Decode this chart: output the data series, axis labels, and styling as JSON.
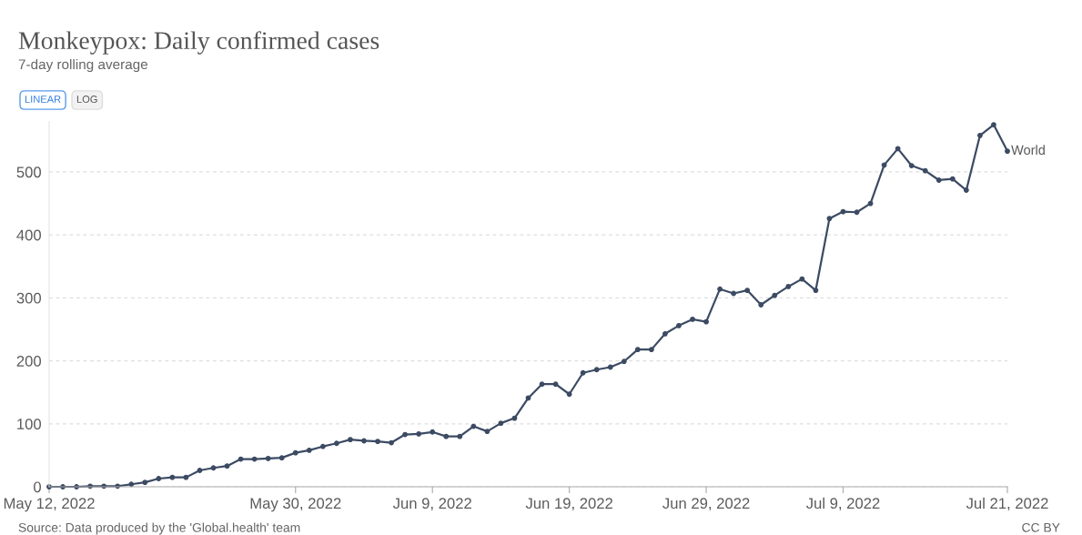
{
  "chart_data": {
    "type": "line",
    "title": "Monkeypox: Daily confirmed cases",
    "subtitle": "7-day rolling average",
    "annotations": [
      "LINEAR",
      "LOG",
      "Source: Data produced by the 'Global.health' team",
      "CC BY"
    ],
    "x": [
      "2022-05-12",
      "2022-05-13",
      "2022-05-14",
      "2022-05-15",
      "2022-05-16",
      "2022-05-17",
      "2022-05-18",
      "2022-05-19",
      "2022-05-20",
      "2022-05-21",
      "2022-05-22",
      "2022-05-23",
      "2022-05-24",
      "2022-05-25",
      "2022-05-26",
      "2022-05-27",
      "2022-05-28",
      "2022-05-29",
      "2022-05-30",
      "2022-05-31",
      "2022-06-01",
      "2022-06-02",
      "2022-06-03",
      "2022-06-04",
      "2022-06-05",
      "2022-06-06",
      "2022-06-07",
      "2022-06-08",
      "2022-06-09",
      "2022-06-10",
      "2022-06-11",
      "2022-06-12",
      "2022-06-13",
      "2022-06-14",
      "2022-06-15",
      "2022-06-16",
      "2022-06-17",
      "2022-06-18",
      "2022-06-19",
      "2022-06-20",
      "2022-06-21",
      "2022-06-22",
      "2022-06-23",
      "2022-06-24",
      "2022-06-25",
      "2022-06-26",
      "2022-06-27",
      "2022-06-28",
      "2022-06-29",
      "2022-06-30",
      "2022-07-01",
      "2022-07-02",
      "2022-07-03",
      "2022-07-04",
      "2022-07-05",
      "2022-07-06",
      "2022-07-07",
      "2022-07-08",
      "2022-07-09",
      "2022-07-10",
      "2022-07-11",
      "2022-07-12",
      "2022-07-13",
      "2022-07-14",
      "2022-07-15",
      "2022-07-16",
      "2022-07-17",
      "2022-07-18",
      "2022-07-19",
      "2022-07-20",
      "2022-07-21"
    ],
    "series": [
      {
        "name": "World",
        "color": "#3c4b63",
        "values": [
          0,
          0,
          0,
          1,
          1,
          1,
          4,
          7,
          13,
          15,
          15,
          26,
          30,
          33,
          44,
          44,
          45,
          46,
          54,
          58,
          64,
          69,
          75,
          73,
          72,
          70,
          83,
          84,
          87,
          80,
          80,
          96,
          88,
          101,
          109,
          141,
          163,
          163,
          147,
          181,
          186,
          190,
          199,
          218,
          218,
          243,
          256,
          266,
          262,
          314,
          307,
          312,
          289,
          304,
          318,
          330,
          312,
          426,
          437,
          436,
          450,
          511,
          537,
          510,
          502,
          487,
          489,
          471,
          558,
          575,
          533
        ]
      }
    ],
    "xlim": [
      "2022-05-12",
      "2022-07-21"
    ],
    "xticks": [
      {
        "value": "2022-05-12",
        "label": "May 12, 2022"
      },
      {
        "value": "2022-05-30",
        "label": "May 30, 2022"
      },
      {
        "value": "2022-06-09",
        "label": "Jun 9, 2022"
      },
      {
        "value": "2022-06-19",
        "label": "Jun 19, 2022"
      },
      {
        "value": "2022-06-29",
        "label": "Jun 29, 2022"
      },
      {
        "value": "2022-07-09",
        "label": "Jul 9, 2022"
      },
      {
        "value": "2022-07-21",
        "label": "Jul 21, 2022"
      }
    ],
    "ylim": [
      0,
      580
    ],
    "yticks": [
      0,
      100,
      200,
      300,
      400,
      500
    ],
    "grid": "y",
    "marker": "circle",
    "line_style": "solid",
    "legend": false
  }
}
